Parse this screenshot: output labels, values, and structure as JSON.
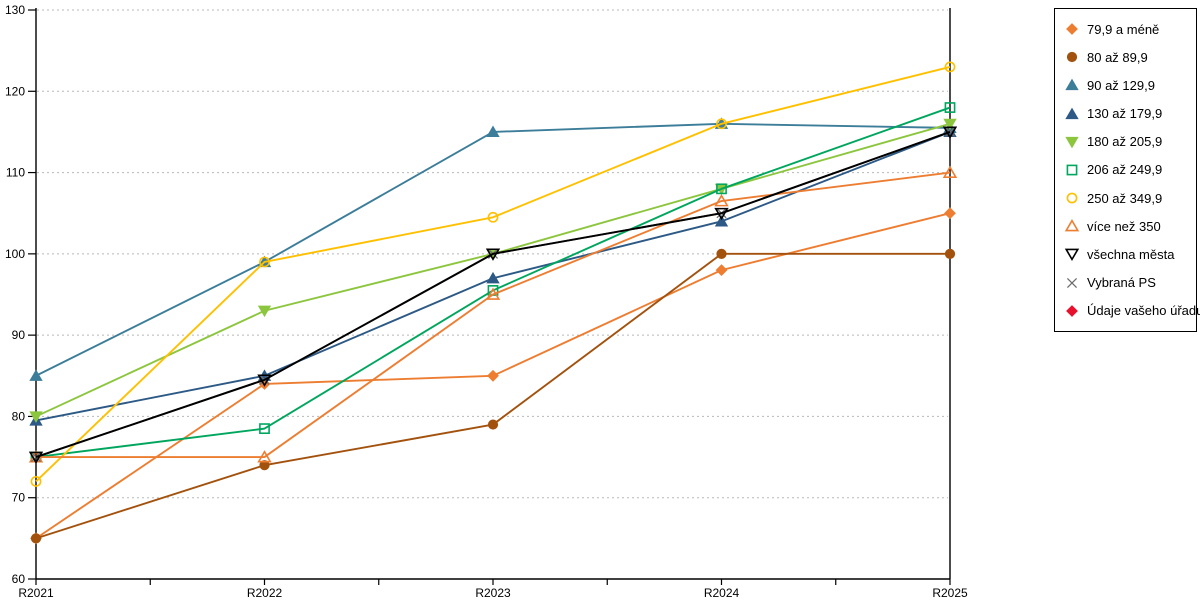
{
  "chart_data": {
    "type": "line",
    "title": "",
    "xlabel": "",
    "ylabel": "",
    "categories": [
      "R2021",
      "R2022",
      "R2023",
      "R2024",
      "R2025"
    ],
    "ylim": [
      60,
      130
    ],
    "y_ticks": [
      60,
      70,
      80,
      90,
      100,
      110,
      120,
      130
    ],
    "grid": "horizontal dashed",
    "legend_position": "right",
    "series": [
      {
        "name": "79,9 a méně",
        "marker": "diamond",
        "fill": true,
        "color": "#ED7D31",
        "values": [
          65,
          84,
          85,
          98,
          105
        ]
      },
      {
        "name": "80 až 89,9",
        "marker": "circle",
        "fill": true,
        "color": "#A3520E",
        "values": [
          65,
          74,
          79,
          100,
          100
        ]
      },
      {
        "name": "90 až 129,9",
        "marker": "triangle-up",
        "fill": true,
        "color": "#3C7D99",
        "values": [
          85,
          99,
          115,
          116,
          115.5
        ]
      },
      {
        "name": "130 až 179,9",
        "marker": "triangle-up",
        "fill": true,
        "color": "#2C5985",
        "values": [
          79.5,
          85,
          97,
          104,
          115
        ]
      },
      {
        "name": "180 až 205,9",
        "marker": "triangle-down",
        "fill": true,
        "color": "#8CC63E",
        "values": [
          80,
          93,
          100,
          108,
          116
        ]
      },
      {
        "name": "206 až 249,9",
        "marker": "square",
        "fill": false,
        "color": "#00A65E",
        "values": [
          75,
          78.5,
          95.5,
          108,
          118
        ]
      },
      {
        "name": "250 až 349,9",
        "marker": "circle",
        "fill": false,
        "color": "#FFC000",
        "values": [
          72,
          99,
          104.5,
          116,
          123
        ]
      },
      {
        "name": "více než 350",
        "marker": "triangle-up",
        "fill": false,
        "color": "#ED7D31",
        "values": [
          75,
          75,
          95,
          106.5,
          110
        ]
      },
      {
        "name": "všechna města",
        "marker": "triangle-down",
        "fill": false,
        "color": "#000000",
        "values": [
          75,
          84.5,
          100,
          105,
          115
        ]
      },
      {
        "name": "Vybraná PS",
        "marker": "x",
        "fill": false,
        "color": "#6E6E6E",
        "values": [
          75,
          84.5,
          100,
          105,
          115
        ]
      },
      {
        "name": "Údaje vašeho úřadu",
        "marker": "diamond",
        "fill": true,
        "color": "#E8112D",
        "values": [
          null,
          null,
          null,
          null,
          null
        ]
      }
    ],
    "draw_order": [
      0,
      1,
      2,
      3,
      4,
      5,
      6,
      7,
      9,
      8,
      10
    ]
  },
  "colors": {
    "axis": "#000000",
    "gridline": "#b8b8b8",
    "background": "#ffffff"
  }
}
